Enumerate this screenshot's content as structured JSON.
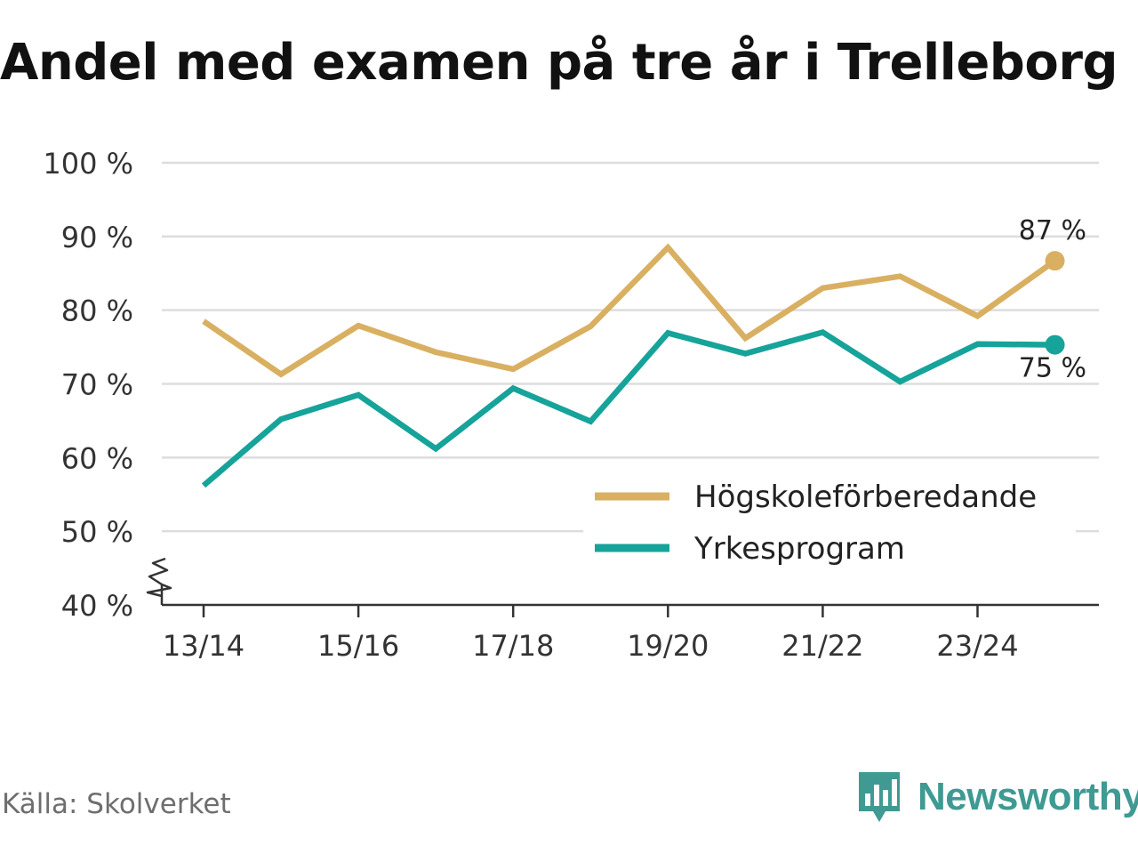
{
  "title": "Andel med examen på tre år i Trelleborg",
  "source": "Källa: Skolverket",
  "brand": {
    "name": "Newsworthy",
    "icon": "bar-chart-speech-bubble-icon",
    "color": "#3e9a93"
  },
  "colors": {
    "gridline": "#dddddd",
    "axis": "#333333",
    "tick_label": "#333333"
  },
  "chart_data": {
    "type": "line",
    "title": "Andel med examen på tre år i Trelleborg",
    "xlabel": "",
    "ylabel": "",
    "ylim": [
      40,
      100
    ],
    "y_ticks": [
      40,
      50,
      60,
      70,
      80,
      90,
      100
    ],
    "y_tick_labels": [
      "40 %",
      "50 %",
      "60 %",
      "70 %",
      "80 %",
      "90 %",
      "100 %"
    ],
    "y_axis_break": true,
    "grid": true,
    "legend_position": "bottom-right",
    "categories": [
      "13/14",
      "14/15",
      "15/16",
      "16/17",
      "17/18",
      "18/19",
      "19/20",
      "20/21",
      "21/22",
      "22/23",
      "23/24",
      "24/25"
    ],
    "x_tick_labels": [
      "13/14",
      "15/16",
      "17/18",
      "19/20",
      "21/22",
      "23/24"
    ],
    "series": [
      {
        "name": "Högskoleförberedande",
        "color": "#d9b062",
        "values": [
          78.5,
          71.3,
          77.9,
          74.3,
          72.0,
          77.8,
          88.5,
          76.2,
          83.0,
          84.6,
          79.2,
          86.7
        ],
        "end_label": "87 %"
      },
      {
        "name": "Yrkesprogram",
        "color": "#16a39a",
        "values": [
          56.2,
          65.2,
          68.5,
          61.2,
          69.4,
          64.9,
          76.9,
          74.1,
          77.0,
          70.3,
          75.4,
          75.3
        ],
        "end_label": "75 %"
      }
    ]
  }
}
